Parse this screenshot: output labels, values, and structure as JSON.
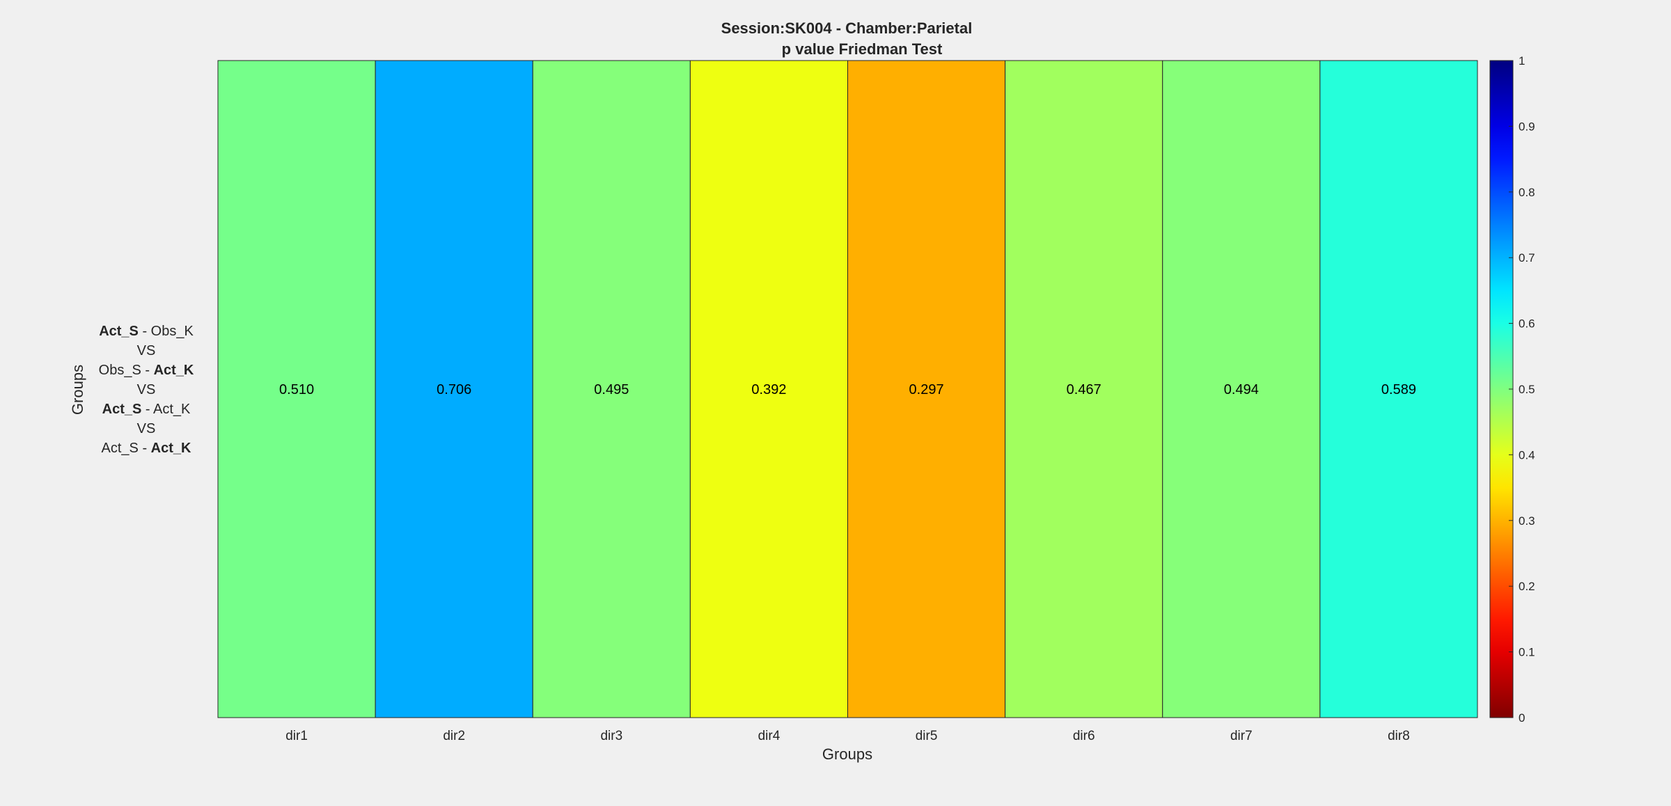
{
  "chart_data": {
    "type": "heatmap",
    "title_line1": "Session:SK004 - Chamber:Parietal",
    "title_line2": "p value Friedman Test",
    "xlabel": "Groups",
    "ylabel": "Groups",
    "x_categories": [
      "dir1",
      "dir2",
      "dir3",
      "dir4",
      "dir5",
      "dir6",
      "dir7",
      "dir8"
    ],
    "y_category_lines": [
      [
        {
          "text": "Act_S",
          "bold": true
        },
        {
          "text": "  - Obs_K",
          "bold": false
        }
      ],
      [
        {
          "text": "VS",
          "bold": false
        }
      ],
      [
        {
          "text": "Obs_S -  ",
          "bold": false
        },
        {
          "text": "Act_K",
          "bold": true
        }
      ],
      [
        {
          "text": "VS",
          "bold": false
        }
      ],
      [
        {
          "text": "Act_S",
          "bold": true
        },
        {
          "text": "  - Act_K",
          "bold": false
        }
      ],
      [
        {
          "text": "VS",
          "bold": false
        }
      ],
      [
        {
          "text": "Act_S -  ",
          "bold": false
        },
        {
          "text": "Act_K",
          "bold": true
        }
      ]
    ],
    "values": [
      0.51,
      0.706,
      0.495,
      0.392,
      0.297,
      0.467,
      0.494,
      0.589
    ],
    "value_labels": [
      "0.510",
      "0.706",
      "0.495",
      "0.392",
      "0.297",
      "0.467",
      "0.494",
      "0.589"
    ],
    "colormap": "reversed jet",
    "clim": [
      0,
      1
    ],
    "colorbar_ticks": [
      "0",
      "0.1",
      "0.2",
      "0.3",
      "0.4",
      "0.5",
      "0.6",
      "0.7",
      "0.8",
      "0.9",
      "1"
    ],
    "colorbar_position": "right",
    "grid": false
  }
}
